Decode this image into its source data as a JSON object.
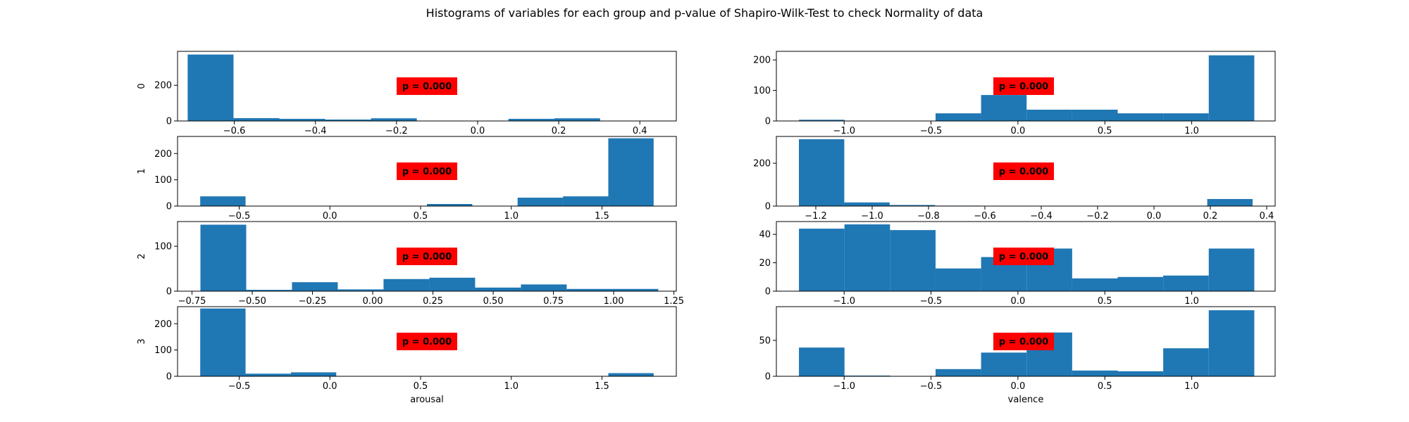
{
  "title": "Histograms of variables for each group and p-value of Shapiro-Wilk-Test to check Normality of data",
  "colors": {
    "bar": "#1f77b4",
    "badge": "#ff0000"
  },
  "chart_data": [
    {
      "type": "bar",
      "row": 0,
      "col": 0,
      "ylabel": "0",
      "xlabel": "",
      "p_label": "p = 0.000",
      "xlim": [
        -0.74,
        0.49
      ],
      "ylim": [
        0,
        390
      ],
      "xticks": [
        -0.6,
        -0.4,
        -0.2,
        0.0,
        0.2,
        0.4
      ],
      "yticks": [
        0,
        200
      ],
      "xtick_labels": [
        "−0.6",
        "−0.4",
        "−0.2",
        "0.0",
        "0.2",
        "0.4"
      ],
      "bin_edges": [
        -0.715,
        -0.602,
        -0.489,
        -0.376,
        -0.263,
        -0.15,
        -0.037,
        0.076,
        0.189,
        0.302,
        0.415
      ],
      "counts": [
        372,
        16,
        12,
        8,
        15,
        0,
        0,
        12,
        15,
        0
      ]
    },
    {
      "type": "bar",
      "row": 0,
      "col": 1,
      "ylabel": "",
      "xlabel": "",
      "p_label": "p = 0.000",
      "xlim": [
        -1.39,
        1.48
      ],
      "ylim": [
        0,
        228
      ],
      "xticks": [
        -1.0,
        -0.5,
        0.0,
        0.5,
        1.0
      ],
      "yticks": [
        0,
        100,
        200
      ],
      "xtick_labels": [
        "−1.0",
        "−0.5",
        "0.0",
        "0.5",
        "1.0"
      ],
      "bin_edges": [
        -1.26,
        -0.998,
        -0.736,
        -0.474,
        -0.212,
        0.05,
        0.312,
        0.574,
        0.836,
        1.098,
        1.36
      ],
      "counts": [
        4,
        0,
        0,
        25,
        85,
        37,
        37,
        25,
        25,
        215
      ]
    },
    {
      "type": "bar",
      "row": 1,
      "col": 0,
      "ylabel": "1",
      "xlabel": "",
      "p_label": "p = 0.000",
      "xlim": [
        -0.84,
        1.91
      ],
      "ylim": [
        0,
        265
      ],
      "xticks": [
        -0.5,
        0.0,
        0.5,
        1.0,
        1.5
      ],
      "yticks": [
        0,
        100,
        200
      ],
      "xtick_labels": [
        "−0.5",
        "0.0",
        "0.5",
        "1.0",
        "1.5"
      ],
      "bin_edges": [
        -0.715,
        -0.465,
        -0.215,
        0.035,
        0.285,
        0.535,
        0.785,
        1.035,
        1.285,
        1.535,
        1.785
      ],
      "counts": [
        37,
        0,
        0,
        0,
        0,
        8,
        0,
        32,
        37,
        258
      ]
    },
    {
      "type": "bar",
      "row": 1,
      "col": 1,
      "ylabel": "",
      "xlabel": "",
      "p_label": "p = 0.000",
      "xlim": [
        -1.34,
        0.43
      ],
      "ylim": [
        0,
        325
      ],
      "xticks": [
        -1.2,
        -1.0,
        -0.8,
        -0.6,
        -0.4,
        -0.2,
        0.0,
        0.2,
        0.4
      ],
      "yticks": [
        0,
        200
      ],
      "xtick_labels": [
        "−1.2",
        "−1.0",
        "−0.8",
        "−0.6",
        "−0.4",
        "−0.2",
        "0.0",
        "0.2",
        "0.4"
      ],
      "bin_edges": [
        -1.26,
        -1.099,
        -0.938,
        -0.777,
        -0.616,
        -0.455,
        -0.294,
        -0.133,
        0.028,
        0.189,
        0.35
      ],
      "counts": [
        312,
        17,
        5,
        2,
        1,
        0,
        0,
        0,
        0,
        33
      ]
    },
    {
      "type": "bar",
      "row": 2,
      "col": 0,
      "ylabel": "2",
      "xlabel": "",
      "p_label": "p = 0.000",
      "xlim": [
        -0.81,
        1.26
      ],
      "ylim": [
        0,
        155
      ],
      "xticks": [
        -0.75,
        -0.5,
        -0.25,
        0.0,
        0.25,
        0.5,
        0.75,
        1.0,
        1.25
      ],
      "yticks": [
        0,
        100
      ],
      "xtick_labels": [
        "−0.75",
        "−0.50",
        "−0.25",
        "0.00",
        "0.25",
        "0.50",
        "0.75",
        "1.00",
        "1.25"
      ],
      "bin_edges": [
        -0.715,
        -0.525,
        -0.335,
        -0.145,
        0.045,
        0.235,
        0.425,
        0.615,
        0.805,
        0.995,
        1.185
      ],
      "counts": [
        148,
        3,
        20,
        4,
        27,
        30,
        8,
        15,
        5,
        5
      ]
    },
    {
      "type": "bar",
      "row": 2,
      "col": 1,
      "ylabel": "",
      "xlabel": "",
      "p_label": "p = 0.000",
      "xlim": [
        -1.39,
        1.48
      ],
      "ylim": [
        0,
        49
      ],
      "xticks": [
        -1.0,
        -0.5,
        0.0,
        0.5,
        1.0
      ],
      "yticks": [
        0,
        20,
        40
      ],
      "xtick_labels": [
        "−1.0",
        "−0.5",
        "0.0",
        "0.5",
        "1.0"
      ],
      "bin_edges": [
        -1.26,
        -0.998,
        -0.736,
        -0.474,
        -0.212,
        0.05,
        0.312,
        0.574,
        0.836,
        1.098,
        1.36
      ],
      "counts": [
        44,
        47,
        43,
        16,
        24,
        30,
        9,
        10,
        11,
        30
      ]
    },
    {
      "type": "bar",
      "row": 3,
      "col": 0,
      "ylabel": "3",
      "xlabel": "arousal",
      "p_label": "p = 0.000",
      "xlim": [
        -0.84,
        1.91
      ],
      "ylim": [
        0,
        265
      ],
      "xticks": [
        -0.5,
        0.0,
        0.5,
        1.0,
        1.5
      ],
      "yticks": [
        0,
        100,
        200
      ],
      "xtick_labels": [
        "−0.5",
        "0.0",
        "0.5",
        "1.0",
        "1.5"
      ],
      "bin_edges": [
        -0.715,
        -0.465,
        -0.215,
        0.035,
        0.285,
        0.535,
        0.785,
        1.035,
        1.285,
        1.535,
        1.785
      ],
      "counts": [
        258,
        10,
        15,
        0,
        0,
        0,
        0,
        0,
        0,
        12
      ]
    },
    {
      "type": "bar",
      "row": 3,
      "col": 1,
      "ylabel": "",
      "xlabel": "valence",
      "p_label": "p = 0.000",
      "xlim": [
        -1.39,
        1.48
      ],
      "ylim": [
        0,
        97
      ],
      "xticks": [
        -1.0,
        -0.5,
        0.0,
        0.5,
        1.0
      ],
      "yticks": [
        0,
        50
      ],
      "xtick_labels": [
        "−1.0",
        "−0.5",
        "0.0",
        "0.5",
        "1.0"
      ],
      "bin_edges": [
        -1.26,
        -0.998,
        -0.736,
        -0.474,
        -0.212,
        0.05,
        0.312,
        0.574,
        0.836,
        1.098,
        1.36
      ],
      "counts": [
        40,
        1,
        0,
        10,
        33,
        61,
        8,
        7,
        39,
        92
      ]
    }
  ]
}
